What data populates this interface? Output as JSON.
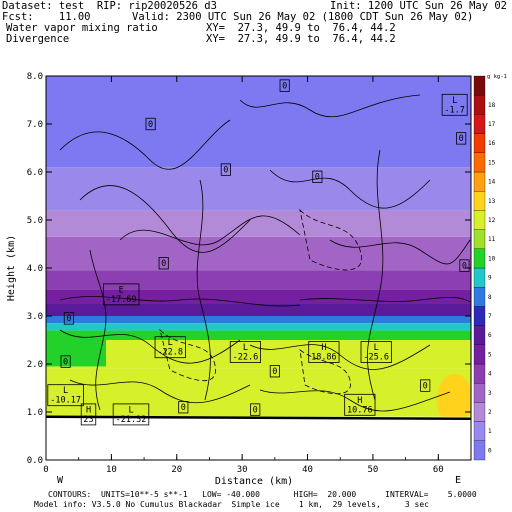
{
  "header": {
    "dataset": "Dataset: test  RIP: rip20020526 d3",
    "init": "Init: 1200 UTC Sun 26 May 02",
    "fcst": "Fcst:    11.00",
    "valid": "Valid: 2300 UTC Sun 26 May 02 (1800 CDT Sun 26 May 02)",
    "field1": "Water vapor mixing ratio",
    "xy1": "XY=  27.3, 49.9 to  76.4, 44.2",
    "field2": "Divergence",
    "xy2": "XY=  27.3, 49.9 to  76.4, 44.2"
  },
  "footer": {
    "contours": "CONTOURS:  UNITS=10**-5 s**-1   LOW= -40.000       HIGH=  20.000      INTERVAL=    5.0000",
    "model": "Model info: V3.5.0 No Cumulus Blackadar  Simple ice    1 km,  29 levels,     3 sec"
  },
  "chart_data": {
    "type": "heatmap",
    "title": "Water vapor mixing ratio / Divergence",
    "xlabel": "Distance (km)",
    "ylabel": "Height (km)",
    "xlim": [
      0,
      65
    ],
    "ylim": [
      0.0,
      8.0
    ],
    "x_ticks": [
      "0",
      "10",
      "20",
      "30",
      "40",
      "50",
      "60"
    ],
    "y_ticks": [
      "0.0",
      "1.0",
      "2.0",
      "3.0",
      "4.0",
      "5.0",
      "6.0",
      "7.0",
      "8.0"
    ],
    "x_end_labels": {
      "left": "W",
      "right": "E"
    },
    "colorbar_unit": "g kg-1",
    "colorbar_levels": [
      {
        "label": "0",
        "color": "#7d79f0"
      },
      {
        "label": "1",
        "color": "#9a88ea"
      },
      {
        "label": "2",
        "color": "#b38ad8"
      },
      {
        "label": "3",
        "color": "#a265c6"
      },
      {
        "label": "4",
        "color": "#8c3fb3"
      },
      {
        "label": "5",
        "color": "#7420a0"
      },
      {
        "label": "6",
        "color": "#5a1a9a"
      },
      {
        "label": "7",
        "color": "#2e2ab8"
      },
      {
        "label": "8",
        "color": "#2f7ae0"
      },
      {
        "label": "9",
        "color": "#22c8c8"
      },
      {
        "label": "10",
        "color": "#22d22a"
      },
      {
        "label": "11",
        "color": "#9ee02a"
      },
      {
        "label": "12",
        "color": "#d6f02c"
      },
      {
        "label": "13",
        "color": "#ffd21c"
      },
      {
        "label": "14",
        "color": "#ffa010"
      },
      {
        "label": "15",
        "color": "#ff6a00"
      },
      {
        "label": "16",
        "color": "#f03c00"
      },
      {
        "label": "17",
        "color": "#d21818"
      },
      {
        "label": "18",
        "color": "#aa1010"
      },
      {
        "label": "",
        "color": "#7a0a0a"
      }
    ],
    "height_bands": [
      {
        "z0": 0.9,
        "z1": 1.9,
        "level": 12
      },
      {
        "z0": 1.9,
        "z1": 2.5,
        "level": 12
      },
      {
        "z0": 2.5,
        "z1": 2.7,
        "level": 10
      },
      {
        "z0": 2.7,
        "z1": 2.85,
        "level": 9
      },
      {
        "z0": 2.85,
        "z1": 3.0,
        "level": 8
      },
      {
        "z0": 3.0,
        "z1": 3.25,
        "level": 6
      },
      {
        "z0": 3.25,
        "z1": 3.55,
        "level": 5
      },
      {
        "z0": 3.55,
        "z1": 3.95,
        "level": 4
      },
      {
        "z0": 3.95,
        "z1": 4.65,
        "level": 3
      },
      {
        "z0": 4.65,
        "z1": 5.2,
        "level": 2
      },
      {
        "z0": 5.2,
        "z1": 6.1,
        "level": 1
      },
      {
        "z0": 6.1,
        "z1": 8.0,
        "level": 0
      }
    ],
    "contour_labels": [
      {
        "text": "L\n-1.7",
        "x": 62.5,
        "z": 7.4
      },
      {
        "text": "0",
        "x": 36.5,
        "z": 7.8
      },
      {
        "text": "0",
        "x": 16.0,
        "z": 7.0
      },
      {
        "text": "0",
        "x": 63.5,
        "z": 6.7
      },
      {
        "text": "0",
        "x": 27.5,
        "z": 6.05
      },
      {
        "text": "0",
        "x": 41.5,
        "z": 5.9
      },
      {
        "text": "0",
        "x": 18.0,
        "z": 4.1
      },
      {
        "text": "0",
        "x": 64.0,
        "z": 4.05
      },
      {
        "text": "E\n-17.69",
        "x": 11.5,
        "z": 3.45
      },
      {
        "text": "0",
        "x": 3.5,
        "z": 2.95
      },
      {
        "text": "L\n-22.8",
        "x": 19.0,
        "z": 2.35
      },
      {
        "text": "L\n-22.6",
        "x": 30.5,
        "z": 2.25
      },
      {
        "text": "H\n18.86",
        "x": 42.5,
        "z": 2.25
      },
      {
        "text": "L\n-25.6",
        "x": 50.5,
        "z": 2.25
      },
      {
        "text": "0",
        "x": 3.0,
        "z": 2.05
      },
      {
        "text": "0",
        "x": 35.0,
        "z": 1.85
      },
      {
        "text": "0",
        "x": 58.0,
        "z": 1.55
      },
      {
        "text": "L\n-10.17",
        "x": 3.0,
        "z": 1.35
      },
      {
        "text": "H\n10.76",
        "x": 48.0,
        "z": 1.15
      },
      {
        "text": "0",
        "x": 21.0,
        "z": 1.1
      },
      {
        "text": "0",
        "x": 32.0,
        "z": 1.05
      },
      {
        "text": "H\n23",
        "x": 6.5,
        "z": 0.95
      },
      {
        "text": "L\n-21.32",
        "x": 13.0,
        "z": 0.95
      }
    ]
  }
}
